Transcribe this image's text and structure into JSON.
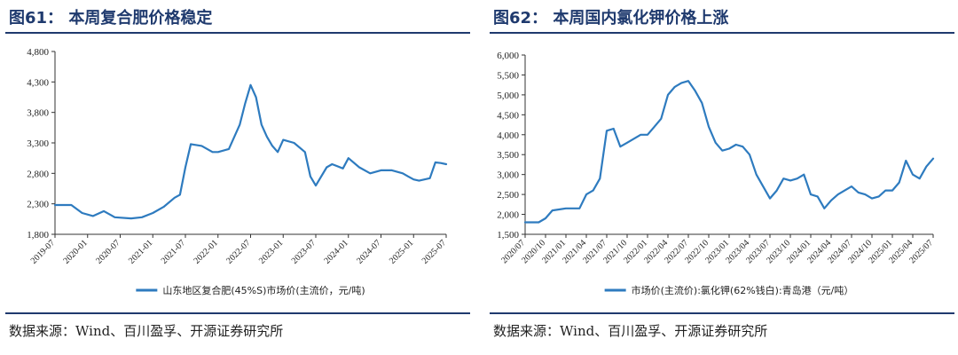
{
  "panels": [
    {
      "title": "图61：  本周复合肥价格稳定",
      "source": "数据来源：Wind、百川盈孚、开源证券研究所"
    },
    {
      "title": "图62：  本周国内氯化钾价格上涨",
      "source": "数据来源：Wind、百川盈孚、开源证券研究所"
    }
  ],
  "chart_data": [
    {
      "type": "line",
      "title": "图61：  本周复合肥价格稳定",
      "xlabel": "",
      "ylabel": "",
      "ylim": [
        1800,
        4800
      ],
      "yticks": [
        1800,
        2300,
        2800,
        3300,
        3800,
        4300,
        4800
      ],
      "ytick_labels": [
        "1,800",
        "2,300",
        "2,800",
        "3,300",
        "3,800",
        "4,300",
        "4,800"
      ],
      "xlim": [
        "2019-07",
        "2025-07"
      ],
      "xtick_labels": [
        "2019-07",
        "2020-01",
        "2020-07",
        "2021-01",
        "2021-07",
        "2022-01",
        "2022-07",
        "2023-01",
        "2023-07",
        "2024-01",
        "2024-07",
        "2025-01",
        "2025-07"
      ],
      "legend_position": "bottom",
      "grid": false,
      "color": "#2e7bbf",
      "series": [
        {
          "name": "山东地区复合肥(45%S)市场价(主流价，元/吨)",
          "x": [
            "2019-07",
            "2019-10",
            "2019-12",
            "2020-02",
            "2020-04",
            "2020-06",
            "2020-09",
            "2020-11",
            "2021-01",
            "2021-03",
            "2021-05",
            "2021-06",
            "2021-07",
            "2021-08",
            "2021-10",
            "2021-12",
            "2022-01",
            "2022-03",
            "2022-05",
            "2022-06",
            "2022-07",
            "2022-08",
            "2022-09",
            "2022-10",
            "2022-11",
            "2022-12",
            "2023-01",
            "2023-03",
            "2023-05",
            "2023-06",
            "2023-07",
            "2023-09",
            "2023-10",
            "2023-12",
            "2024-01",
            "2024-03",
            "2024-05",
            "2024-07",
            "2024-09",
            "2024-11",
            "2024-12",
            "2025-01",
            "2025-02",
            "2025-03",
            "2025-04",
            "2025-05",
            "2025-06",
            "2025-07"
          ],
          "values": [
            2280,
            2280,
            2150,
            2100,
            2180,
            2080,
            2060,
            2080,
            2150,
            2250,
            2400,
            2450,
            2900,
            3280,
            3250,
            3150,
            3150,
            3200,
            3600,
            3950,
            4250,
            4050,
            3600,
            3400,
            3250,
            3150,
            3350,
            3300,
            3150,
            2750,
            2600,
            2900,
            2950,
            2880,
            3050,
            2900,
            2800,
            2850,
            2850,
            2800,
            2750,
            2700,
            2680,
            2700,
            2720,
            2980,
            2970,
            2950
          ]
        }
      ]
    },
    {
      "type": "line",
      "title": "图62：  本周国内氯化钾价格上涨",
      "xlabel": "",
      "ylabel": "",
      "ylim": [
        1500,
        6000
      ],
      "yticks": [
        1500,
        2000,
        2500,
        3000,
        3500,
        4000,
        4500,
        5000,
        5500,
        6000
      ],
      "ytick_labels": [
        "1,500",
        "2,000",
        "2,500",
        "3,000",
        "3,500",
        "4,000",
        "4,500",
        "5,000",
        "5,500",
        "6,000"
      ],
      "xlim": [
        "2020-07",
        "2025-07"
      ],
      "xtick_labels": [
        "2020/07",
        "2020/10",
        "2021/01",
        "2021/04",
        "2021/07",
        "2021/10",
        "2022/01",
        "2022/04",
        "2022/07",
        "2022/10",
        "2023/01",
        "2023/04",
        "2023/07",
        "2023/10",
        "2024/01",
        "2024/04",
        "2024/07",
        "2024/10",
        "2025/01",
        "2025/04",
        "2025/07"
      ],
      "legend_position": "bottom",
      "grid": false,
      "color": "#2e7bbf",
      "series": [
        {
          "name": "市场价(主流价):氯化钾(62%钱白):青岛港（元/吨）",
          "x": [
            "2020-07",
            "2020-09",
            "2020-10",
            "2020-11",
            "2021-01",
            "2021-03",
            "2021-04",
            "2021-05",
            "2021-06",
            "2021-07",
            "2021-08",
            "2021-09",
            "2021-10",
            "2021-12",
            "2022-01",
            "2022-02",
            "2022-03",
            "2022-04",
            "2022-05",
            "2022-06",
            "2022-07",
            "2022-08",
            "2022-09",
            "2022-10",
            "2022-11",
            "2022-12",
            "2023-01",
            "2023-02",
            "2023-03",
            "2023-04",
            "2023-05",
            "2023-06",
            "2023-07",
            "2023-08",
            "2023-09",
            "2023-10",
            "2023-11",
            "2023-12",
            "2024-01",
            "2024-02",
            "2024-03",
            "2024-04",
            "2024-05",
            "2024-06",
            "2024-07",
            "2024-08",
            "2024-09",
            "2024-10",
            "2024-11",
            "2024-12",
            "2025-01",
            "2025-02",
            "2025-03",
            "2025-04",
            "2025-05",
            "2025-06",
            "2025-07"
          ],
          "values": [
            1800,
            1800,
            1900,
            2100,
            2150,
            2150,
            2500,
            2600,
            2900,
            4100,
            4150,
            3700,
            3800,
            4000,
            4000,
            4200,
            4400,
            5000,
            5200,
            5300,
            5350,
            5100,
            4800,
            4200,
            3800,
            3600,
            3650,
            3750,
            3700,
            3500,
            3000,
            2700,
            2400,
            2600,
            2900,
            2850,
            2900,
            3000,
            2500,
            2450,
            2150,
            2350,
            2500,
            2600,
            2700,
            2550,
            2500,
            2400,
            2450,
            2600,
            2600,
            2800,
            3350,
            3000,
            2900,
            3200,
            3400
          ]
        }
      ]
    }
  ]
}
